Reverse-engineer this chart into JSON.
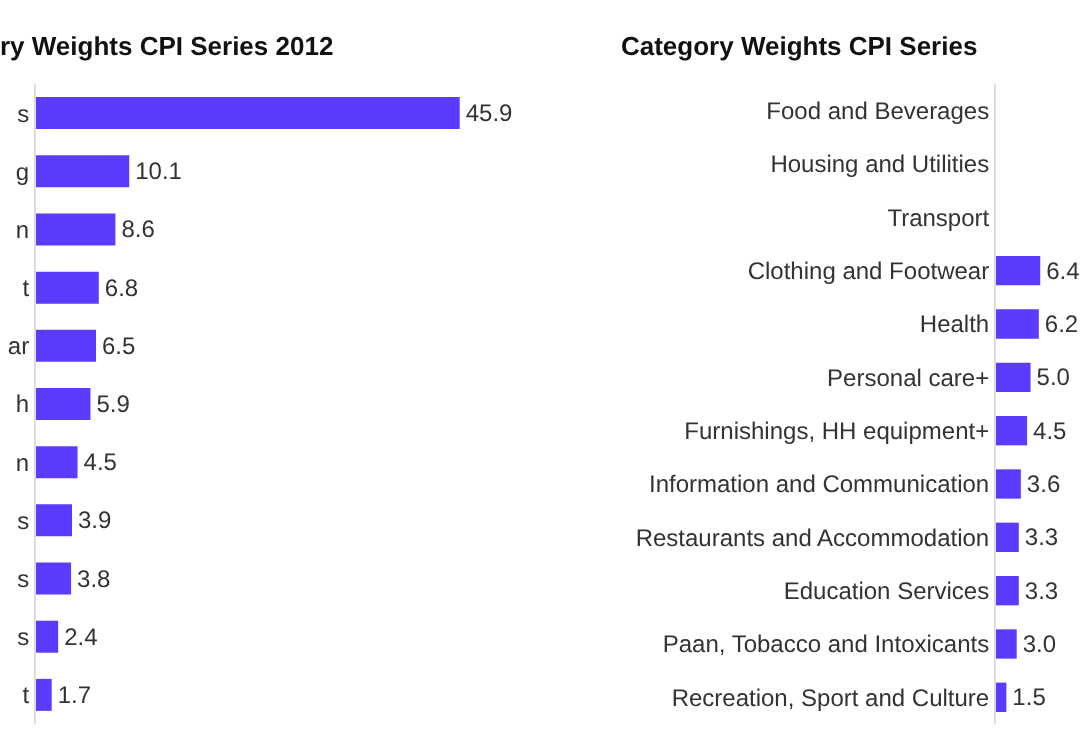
{
  "chart_data": [
    {
      "type": "bar",
      "orientation": "horizontal",
      "title": "ry Weights CPI Series 2012",
      "categories": [
        "s",
        "g",
        "n",
        "t",
        "ar",
        "h",
        "n",
        "s",
        "s",
        "s",
        "t"
      ],
      "values": [
        45.9,
        10.1,
        8.6,
        6.8,
        6.5,
        5.9,
        4.5,
        3.9,
        3.8,
        2.4,
        1.7
      ],
      "color": "#5b3cff",
      "data_labels": true
    },
    {
      "type": "bar",
      "orientation": "horizontal",
      "title": "Category Weights CPI Series",
      "categories": [
        "Food and Beverages",
        "Housing and Utilities",
        "Transport",
        "Clothing and Footwear",
        "Health",
        "Personal care+",
        "Furnishings, HH equipment+",
        "Information and Communication",
        "Restaurants and Accommodation",
        "Education Services",
        "Paan, Tobacco and Intoxicants",
        "Recreation, Sport and Culture"
      ],
      "values": [
        null,
        null,
        null,
        6.4,
        6.2,
        5.0,
        4.5,
        3.6,
        3.3,
        3.3,
        3.0,
        1.5
      ],
      "value_labels": [
        null,
        null,
        null,
        "6.4",
        "6.2",
        "5.0",
        "4.5",
        "3.6",
        "3.3",
        "3.3",
        "3.0",
        "1.5"
      ],
      "color": "#5b3cff"
    }
  ]
}
